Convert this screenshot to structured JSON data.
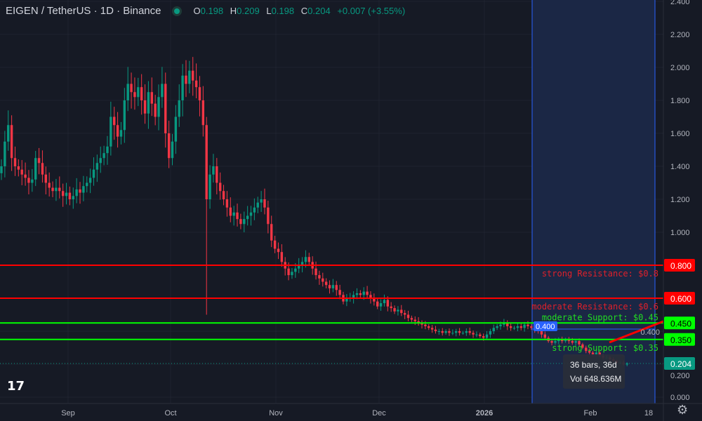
{
  "header": {
    "symbol": "EIGEN / TetherUS · 1D · Binance",
    "o_label": "O",
    "o": "0.198",
    "h_label": "H",
    "h": "0.209",
    "l_label": "L",
    "l": "0.198",
    "c_label": "C",
    "c": "0.204",
    "change": "+0.007 (+3.55%)",
    "status_icon": "market-open-dot"
  },
  "tooltip": {
    "bars": "36 bars, 36d",
    "vol": "Vol 648.636M"
  },
  "colors": {
    "up": "#089981",
    "down": "#f23645",
    "resistance": "#ff0000",
    "support": "#00ff00",
    "range": "#2962ff",
    "background": "#161a25"
  },
  "logo": "TV",
  "chart_data": {
    "type": "candlestick",
    "first_date": "2025-08-12",
    "interval": "1D",
    "ylim": [
      0,
      2.4
    ],
    "y_ticks": [
      "2.400",
      "2.200",
      "2.000",
      "1.800",
      "1.600",
      "1.400",
      "1.200",
      "1.000",
      "0.800",
      "0.600",
      "0.400",
      "0.200",
      "0.000"
    ],
    "x_ticks": [
      "Sep",
      "Oct",
      "Nov",
      "Dec",
      "2026",
      "Feb",
      "18"
    ],
    "closes": [
      1.4,
      1.55,
      1.65,
      1.45,
      1.4,
      1.38,
      1.35,
      1.33,
      1.3,
      1.32,
      1.45,
      1.42,
      1.35,
      1.3,
      1.27,
      1.25,
      1.27,
      1.25,
      1.22,
      1.24,
      1.2,
      1.22,
      1.26,
      1.24,
      1.28,
      1.3,
      1.33,
      1.38,
      1.42,
      1.45,
      1.48,
      1.52,
      1.7,
      1.65,
      1.58,
      1.62,
      1.8,
      1.9,
      1.85,
      1.82,
      1.88,
      1.8,
      1.72,
      1.85,
      1.78,
      1.7,
      1.82,
      1.9,
      1.6,
      1.45,
      1.55,
      1.7,
      1.8,
      1.95,
      1.9,
      1.98,
      1.92,
      1.88,
      1.8,
      1.65,
      1.2,
      1.35,
      1.4,
      1.3,
      1.25,
      1.2,
      1.15,
      1.1,
      1.12,
      1.08,
      1.05,
      1.08,
      1.1,
      1.12,
      1.15,
      1.18,
      1.2,
      1.15,
      1.05,
      0.95,
      0.9,
      0.88,
      0.82,
      0.78,
      0.74,
      0.76,
      0.78,
      0.8,
      0.82,
      0.85,
      0.82,
      0.78,
      0.74,
      0.72,
      0.7,
      0.68,
      0.66,
      0.68,
      0.65,
      0.62,
      0.58,
      0.6,
      0.6,
      0.62,
      0.63,
      0.62,
      0.64,
      0.62,
      0.6,
      0.58,
      0.55,
      0.57,
      0.59,
      0.55,
      0.54,
      0.52,
      0.53,
      0.51,
      0.5,
      0.48,
      0.47,
      0.46,
      0.45,
      0.44,
      0.43,
      0.42,
      0.41,
      0.4,
      0.4,
      0.39,
      0.4,
      0.39,
      0.39,
      0.4,
      0.39,
      0.39,
      0.4,
      0.39,
      0.38,
      0.38,
      0.37,
      0.36,
      0.38,
      0.4,
      0.42,
      0.43,
      0.44,
      0.45,
      0.43,
      0.42,
      0.42,
      0.43,
      0.42,
      0.44,
      0.43,
      0.42,
      0.41,
      0.4,
      0.38,
      0.36,
      0.34,
      0.33,
      0.34,
      0.35,
      0.34,
      0.35,
      0.34,
      0.33,
      0.34,
      0.32,
      0.3,
      0.28,
      0.27,
      0.26,
      0.27,
      0.25,
      0.24,
      0.24,
      0.23,
      0.22,
      0.21,
      0.21,
      0.198,
      0.204
    ],
    "last_price": "0.204",
    "crosshair_price": "0.400",
    "levels": [
      {
        "price": 0.8,
        "price_label": "0.800",
        "text": "strong Resistance: $0.8",
        "kind": "resistance"
      },
      {
        "price": 0.6,
        "price_label": "0.600",
        "text": "moderate Resistance: $0.6",
        "kind": "resistance"
      },
      {
        "price": 0.45,
        "price_label": "0.450",
        "text": "moderate Support: $0.45",
        "kind": "support"
      },
      {
        "price": 0.35,
        "price_label": "0.350",
        "text": "strong Support: $0.35",
        "kind": "support"
      }
    ]
  }
}
